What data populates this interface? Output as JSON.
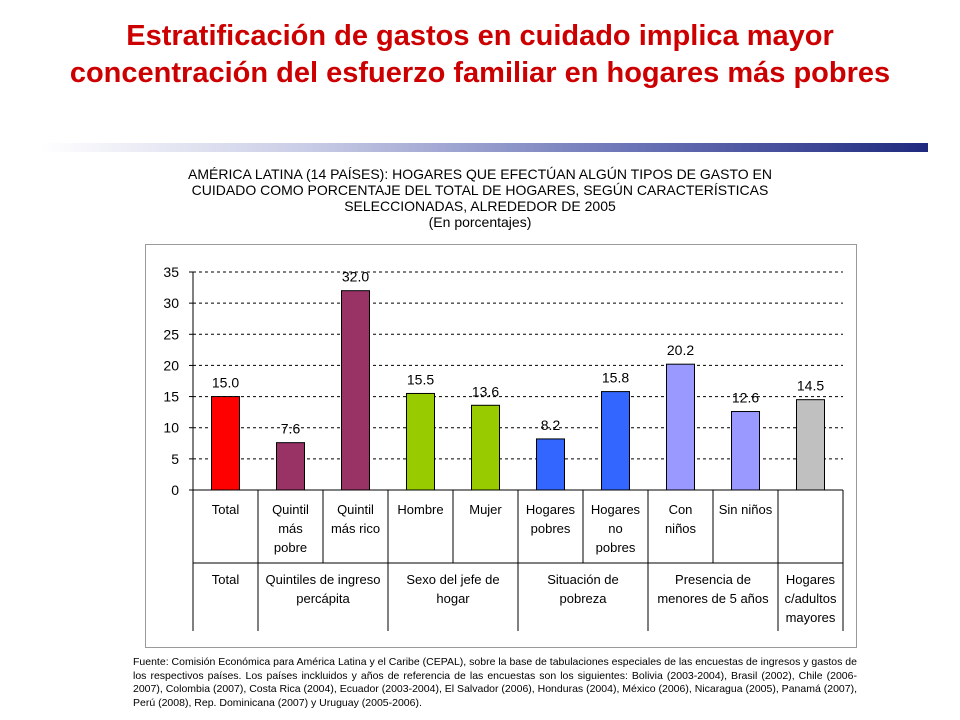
{
  "title": "Estratificación de gastos en cuidado implica mayor concentración del esfuerzo familiar en hogares más pobres",
  "subtitle": {
    "lines": [
      "AMÉRICA LATINA (14 PAÍSES): HOGARES QUE EFECTÚAN ALGÚN TIPOS DE GASTO EN",
      "CUIDADO COMO PORCENTAJE DEL TOTAL DE HOGARES, SEGÚN CARACTERÍSTICAS",
      "SELECCIONADAS, ALREDEDOR DE 2005",
      "(En porcentajes)"
    ]
  },
  "chart_data": {
    "type": "bar",
    "ylim": [
      0,
      35
    ],
    "yticks": [
      "0",
      "5",
      "10",
      "15",
      "20",
      "25",
      "30",
      "35"
    ],
    "grid": "dashed horizontal",
    "bars": [
      {
        "category": [
          "Total"
        ],
        "value": 15.0,
        "label": "15.0",
        "color": "#ff0000"
      },
      {
        "category": [
          "Quintil",
          "más",
          "pobre"
        ],
        "value": 7.6,
        "label": "7.6",
        "color": "#993366"
      },
      {
        "category": [
          "Quintil",
          "más rico"
        ],
        "value": 32.0,
        "label": "32.0",
        "color": "#993366"
      },
      {
        "category": [
          "Hombre"
        ],
        "value": 15.5,
        "label": "15.5",
        "color": "#99cc00"
      },
      {
        "category": [
          "Mujer"
        ],
        "value": 13.6,
        "label": "13.6",
        "color": "#99cc00"
      },
      {
        "category": [
          "Hogares",
          "pobres"
        ],
        "value": 8.2,
        "label": "8.2",
        "color": "#3366ff"
      },
      {
        "category": [
          "Hogares",
          "no",
          "pobres"
        ],
        "value": 15.8,
        "label": "15.8",
        "color": "#3366ff"
      },
      {
        "category": [
          "Con",
          "niños"
        ],
        "value": 20.2,
        "label": "20.2",
        "color": "#9999ff"
      },
      {
        "category": [
          "Sin niños"
        ],
        "value": 12.6,
        "label": "12.6",
        "color": "#9999ff"
      },
      {
        "category": [
          ""
        ],
        "value": 14.5,
        "label": "14.5",
        "color": "#c0c0c0"
      }
    ],
    "groups": [
      {
        "label": [
          "Total"
        ],
        "bars": [
          0,
          0
        ]
      },
      {
        "label": [
          "Quintiles de ingreso",
          "percápita"
        ],
        "bars": [
          1,
          2
        ]
      },
      {
        "label": [
          "Sexo del jefe de",
          "hogar"
        ],
        "bars": [
          3,
          4
        ]
      },
      {
        "label": [
          "Situación de",
          "pobreza"
        ],
        "bars": [
          5,
          6
        ]
      },
      {
        "label": [
          "Presencia de",
          "menores de 5 años"
        ],
        "bars": [
          7,
          8
        ]
      },
      {
        "label": [
          "Hogares",
          "c/adultos",
          "mayores"
        ],
        "bars": [
          9,
          9
        ]
      }
    ]
  },
  "source": "Fuente: Comisión Económica para América Latina y el Caribe (CEPAL), sobre la base de tabulaciones especiales de las encuestas de ingresos y gastos de los respectivos países. Los países inckluidos y años de referencia de las encuestas son los siguientes: Bolivia (2003-2004), Brasil (2002), Chile (2006-2007), Colombia (2007), Costa Rica (2004), Ecuador (2003-2004), El Salvador (2006), Honduras (2004), México (2006), Nicaragua (2005), Panamá (2007), Perú (2008), Rep. Dominicana (2007) y Uruguay (2005-2006)."
}
